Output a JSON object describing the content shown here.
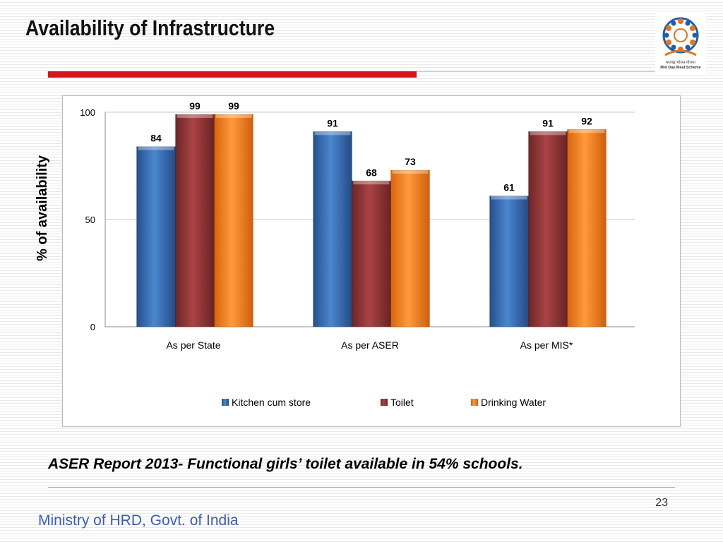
{
  "slide": {
    "title": "Availability of Infrastructure",
    "caption": "ASER Report 2013- Functional girls’ toilet  available in 54% schools.",
    "page_number": "23",
    "footer": "Ministry of HRD, Govt. of India",
    "logo_text_line1": "मध्याह्न भोजन योजना",
    "logo_text_line2": "Mid Day Meal Scheme"
  },
  "colors": {
    "accent_red": "#d8131e",
    "footer_blue": "#3b5bbf",
    "series_blue": "#3a6fb5",
    "series_red": "#94383a",
    "series_orange": "#f07f1d"
  },
  "icons": {
    "logo": "mid-day-meal-logo"
  },
  "chart_data": {
    "type": "bar",
    "ylabel": "% of availability",
    "xlabel": "",
    "title": "",
    "ylim": [
      0,
      100
    ],
    "yticks": [
      0,
      50,
      100
    ],
    "grid": true,
    "legend_position": "bottom",
    "categories": [
      "As per State",
      "As per ASER",
      "As per MIS*"
    ],
    "series": [
      {
        "name": "Kitchen cum store",
        "color": "#3a6fb5",
        "values": [
          84,
          91,
          61
        ]
      },
      {
        "name": "Toilet",
        "color": "#94383a",
        "values": [
          99,
          68,
          91
        ]
      },
      {
        "name": "Drinking Water",
        "color": "#f07f1d",
        "values": [
          99,
          73,
          92
        ]
      }
    ]
  }
}
